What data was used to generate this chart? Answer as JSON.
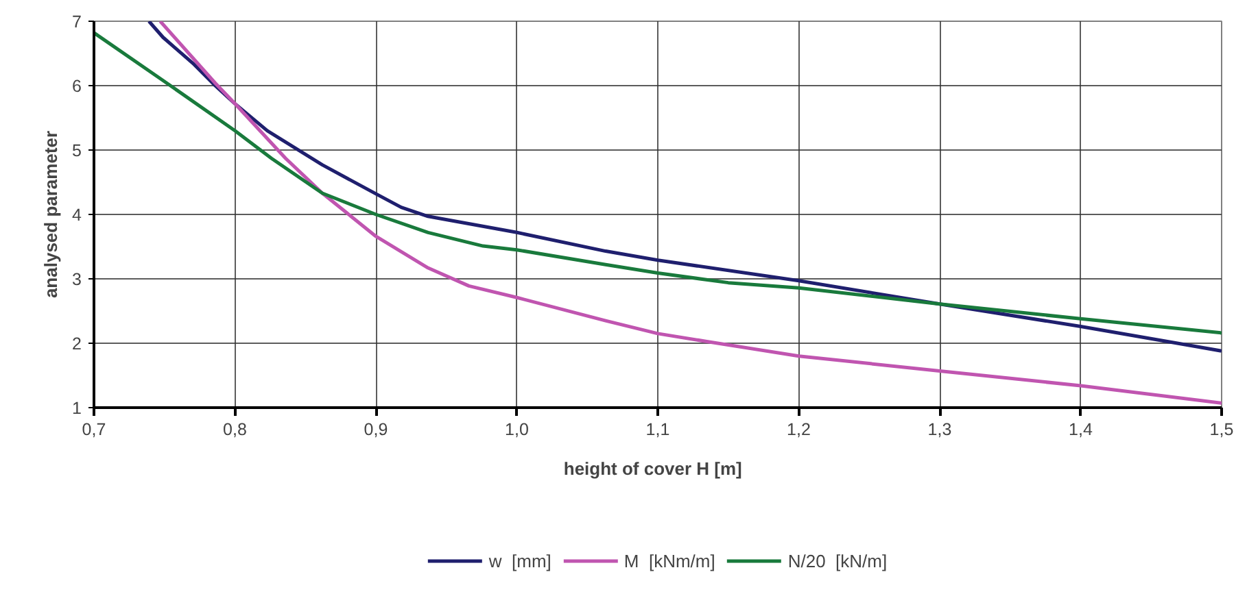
{
  "chart_data": {
    "type": "line",
    "xlabel": "height of cover   H [m]",
    "ylabel": "analysed parameter",
    "xlim": [
      0.7,
      1.5
    ],
    "ylim": [
      1,
      7
    ],
    "xticks": [
      {
        "value": 0.7,
        "label": "0,7"
      },
      {
        "value": 0.8,
        "label": "0,8"
      },
      {
        "value": 0.9,
        "label": "0,9"
      },
      {
        "value": 1.0,
        "label": "1,0"
      },
      {
        "value": 1.1,
        "label": "1,1"
      },
      {
        "value": 1.2,
        "label": "1,2"
      },
      {
        "value": 1.3,
        "label": "1,3"
      },
      {
        "value": 1.4,
        "label": "1,4"
      },
      {
        "value": 1.5,
        "label": "1,5"
      }
    ],
    "yticks": [
      1,
      2,
      3,
      4,
      5,
      6,
      7
    ],
    "grid": true,
    "legend": "bottom",
    "marker": "none",
    "line_style": "solid",
    "series": [
      {
        "name": "w  [mm]",
        "color": "#1f1f6e",
        "x": [
          0.739,
          0.749,
          0.771,
          0.786,
          0.8,
          0.823,
          0.862,
          0.9,
          0.918,
          0.937,
          1.0,
          1.063,
          1.1,
          1.2,
          1.3,
          1.4,
          1.5
        ],
        "values": [
          7.0,
          6.75,
          6.33,
          6.0,
          5.72,
          5.3,
          4.77,
          4.32,
          4.11,
          3.97,
          3.72,
          3.43,
          3.29,
          2.97,
          2.61,
          2.26,
          1.88
        ]
      },
      {
        "name": "M  [kNm/m]",
        "color": "#c055b0",
        "x": [
          0.747,
          0.786,
          0.8,
          0.836,
          0.862,
          0.9,
          0.937,
          0.966,
          1.0,
          1.063,
          1.1,
          1.134,
          1.2,
          1.3,
          1.4,
          1.5
        ],
        "values": [
          7.0,
          6.04,
          5.72,
          4.87,
          4.33,
          3.66,
          3.17,
          2.89,
          2.71,
          2.35,
          2.15,
          2.03,
          1.8,
          1.57,
          1.34,
          1.07
        ]
      },
      {
        "name": "N/20  [kN/m]",
        "color": "#197a3c",
        "x": [
          0.7,
          0.749,
          0.8,
          0.826,
          0.862,
          0.9,
          0.937,
          0.976,
          1.0,
          1.063,
          1.1,
          1.15,
          1.2,
          1.3,
          1.4,
          1.5
        ],
        "values": [
          6.82,
          6.08,
          5.3,
          4.87,
          4.33,
          4.0,
          3.72,
          3.51,
          3.45,
          3.22,
          3.09,
          2.94,
          2.86,
          2.61,
          2.38,
          2.16
        ]
      }
    ]
  }
}
